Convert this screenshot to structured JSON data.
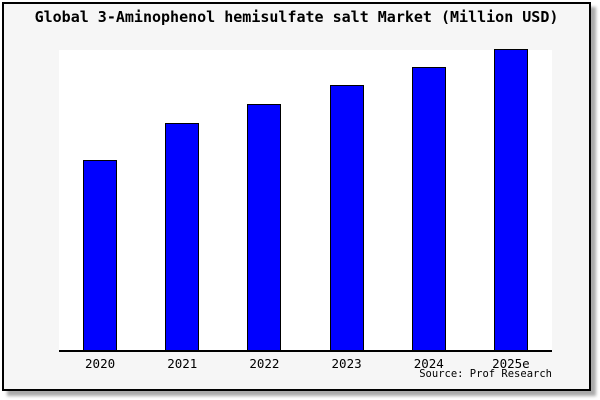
{
  "title": "Global 3-Aminophenol hemisulfate salt Market (Million USD)",
  "source_note": "Source: Prof Research",
  "colors": {
    "bar": "#0000ff",
    "bar_border": "#000000",
    "card_background": "#f6f6f6",
    "plot_background": "#ffffff",
    "axis": "#000000",
    "card_border": "#000000",
    "text": "#000000"
  },
  "chart_data": {
    "type": "bar",
    "title": "Global 3-Aminophenol hemisulfate salt Market (Million USD)",
    "categories": [
      "2020",
      "2021",
      "2022",
      "2023",
      "2024",
      "2025e"
    ],
    "values": [
      63.0,
      75.3,
      81.7,
      88.0,
      94.0,
      100.0
    ],
    "values_note": "y-axis is unlabeled in the image; values are relative heights indexed to 2025e = 100",
    "xlabel": "",
    "ylabel": "",
    "ylim": [
      0,
      100.3
    ],
    "grid": false,
    "legend": false,
    "bar_color": "#0000ff",
    "bar_outline": "#000000"
  }
}
